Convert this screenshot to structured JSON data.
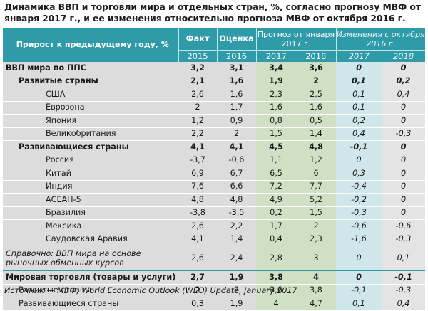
{
  "title": "Динамика ВВП и торговли мира и отдельных стран, %, согласно прогнозу МВФ от января 2017 г., и ее изменения относительно прогноза МВФ от октября 2016 г.",
  "header": {
    "row_label": "Прирост к предыдущему году, %",
    "fact": "Факт",
    "estimate": "Оценка",
    "forecast": "Прогноз от января 2017 г.",
    "change": "Изменения с октября 2016 г.",
    "years": [
      "2015",
      "2016",
      "2017",
      "2018",
      "2017",
      "2018"
    ]
  },
  "rows": [
    {
      "name": "ВВП мира по ППС",
      "values": [
        "3,2",
        "3,1",
        "3,4",
        "3,6",
        "0",
        "0"
      ]
    },
    {
      "name": "Развитые страны",
      "values": [
        "2,1",
        "1,6",
        "1,9",
        "2",
        "0,1",
        "0,2"
      ]
    },
    {
      "name": "США",
      "values": [
        "2,6",
        "1,6",
        "2,3",
        "2,5",
        "0,1",
        "0,4"
      ]
    },
    {
      "name": "Еврозона",
      "values": [
        "2",
        "1,7",
        "1,6",
        "1,6",
        "0,1",
        "0"
      ]
    },
    {
      "name": "Япония",
      "values": [
        "1,2",
        "0,9",
        "0,8",
        "0,5",
        "0,2",
        "0"
      ]
    },
    {
      "name": "Великобритания",
      "values": [
        "2,2",
        "2",
        "1,5",
        "1,4",
        "0,4",
        "-0,3"
      ]
    },
    {
      "name": "Развивающиеся страны",
      "values": [
        "4,1",
        "4,1",
        "4,5",
        "4,8",
        "-0,1",
        "0"
      ]
    },
    {
      "name": "Россия",
      "values": [
        "-3,7",
        "-0,6",
        "1,1",
        "1,2",
        "0",
        "0"
      ]
    },
    {
      "name": "Китай",
      "values": [
        "6,9",
        "6,7",
        "6,5",
        "6",
        "0,3",
        "0"
      ]
    },
    {
      "name": "Индия",
      "values": [
        "7,6",
        "6,6",
        "7,2",
        "7,7",
        "-0,4",
        "0"
      ]
    },
    {
      "name": "АСЕАН-5",
      "values": [
        "4,8",
        "4,8",
        "4,9",
        "5,2",
        "-0,2",
        "0"
      ]
    },
    {
      "name": "Бразилия",
      "values": [
        "-3,8",
        "-3,5",
        "0,2",
        "1,5",
        "-0,3",
        "0"
      ]
    },
    {
      "name": "Мексика",
      "values": [
        "2,6",
        "2,2",
        "1,7",
        "2",
        "-0,6",
        "-0,6"
      ]
    },
    {
      "name": "Саудовская Аравия",
      "values": [
        "4,1",
        "1,4",
        "0,4",
        "2,3",
        "-1,6",
        "-0,3"
      ]
    },
    {
      "name": "Справочно: ВВП мира на основе рыночных обменных курсов",
      "values": [
        "2,6",
        "2,4",
        "2,8",
        "3",
        "0",
        "0,1"
      ]
    },
    {
      "name": "Мировая торговля (товары и услуги)",
      "values": [
        "2,7",
        "1,9",
        "3,8",
        "4",
        "0",
        "-0,1"
      ]
    },
    {
      "name": "Развитые страны",
      "values": [
        "2",
        "2",
        "3,6",
        "3,8",
        "-0,1",
        "-0,3"
      ]
    },
    {
      "name": "Развивающиеся страны",
      "values": [
        "0,3",
        "1,9",
        "4",
        "4,7",
        "0,1",
        "0,4"
      ]
    }
  ],
  "source": "Источник — МВФ, World Economic Outlook (WEO) Update, January 2017"
}
